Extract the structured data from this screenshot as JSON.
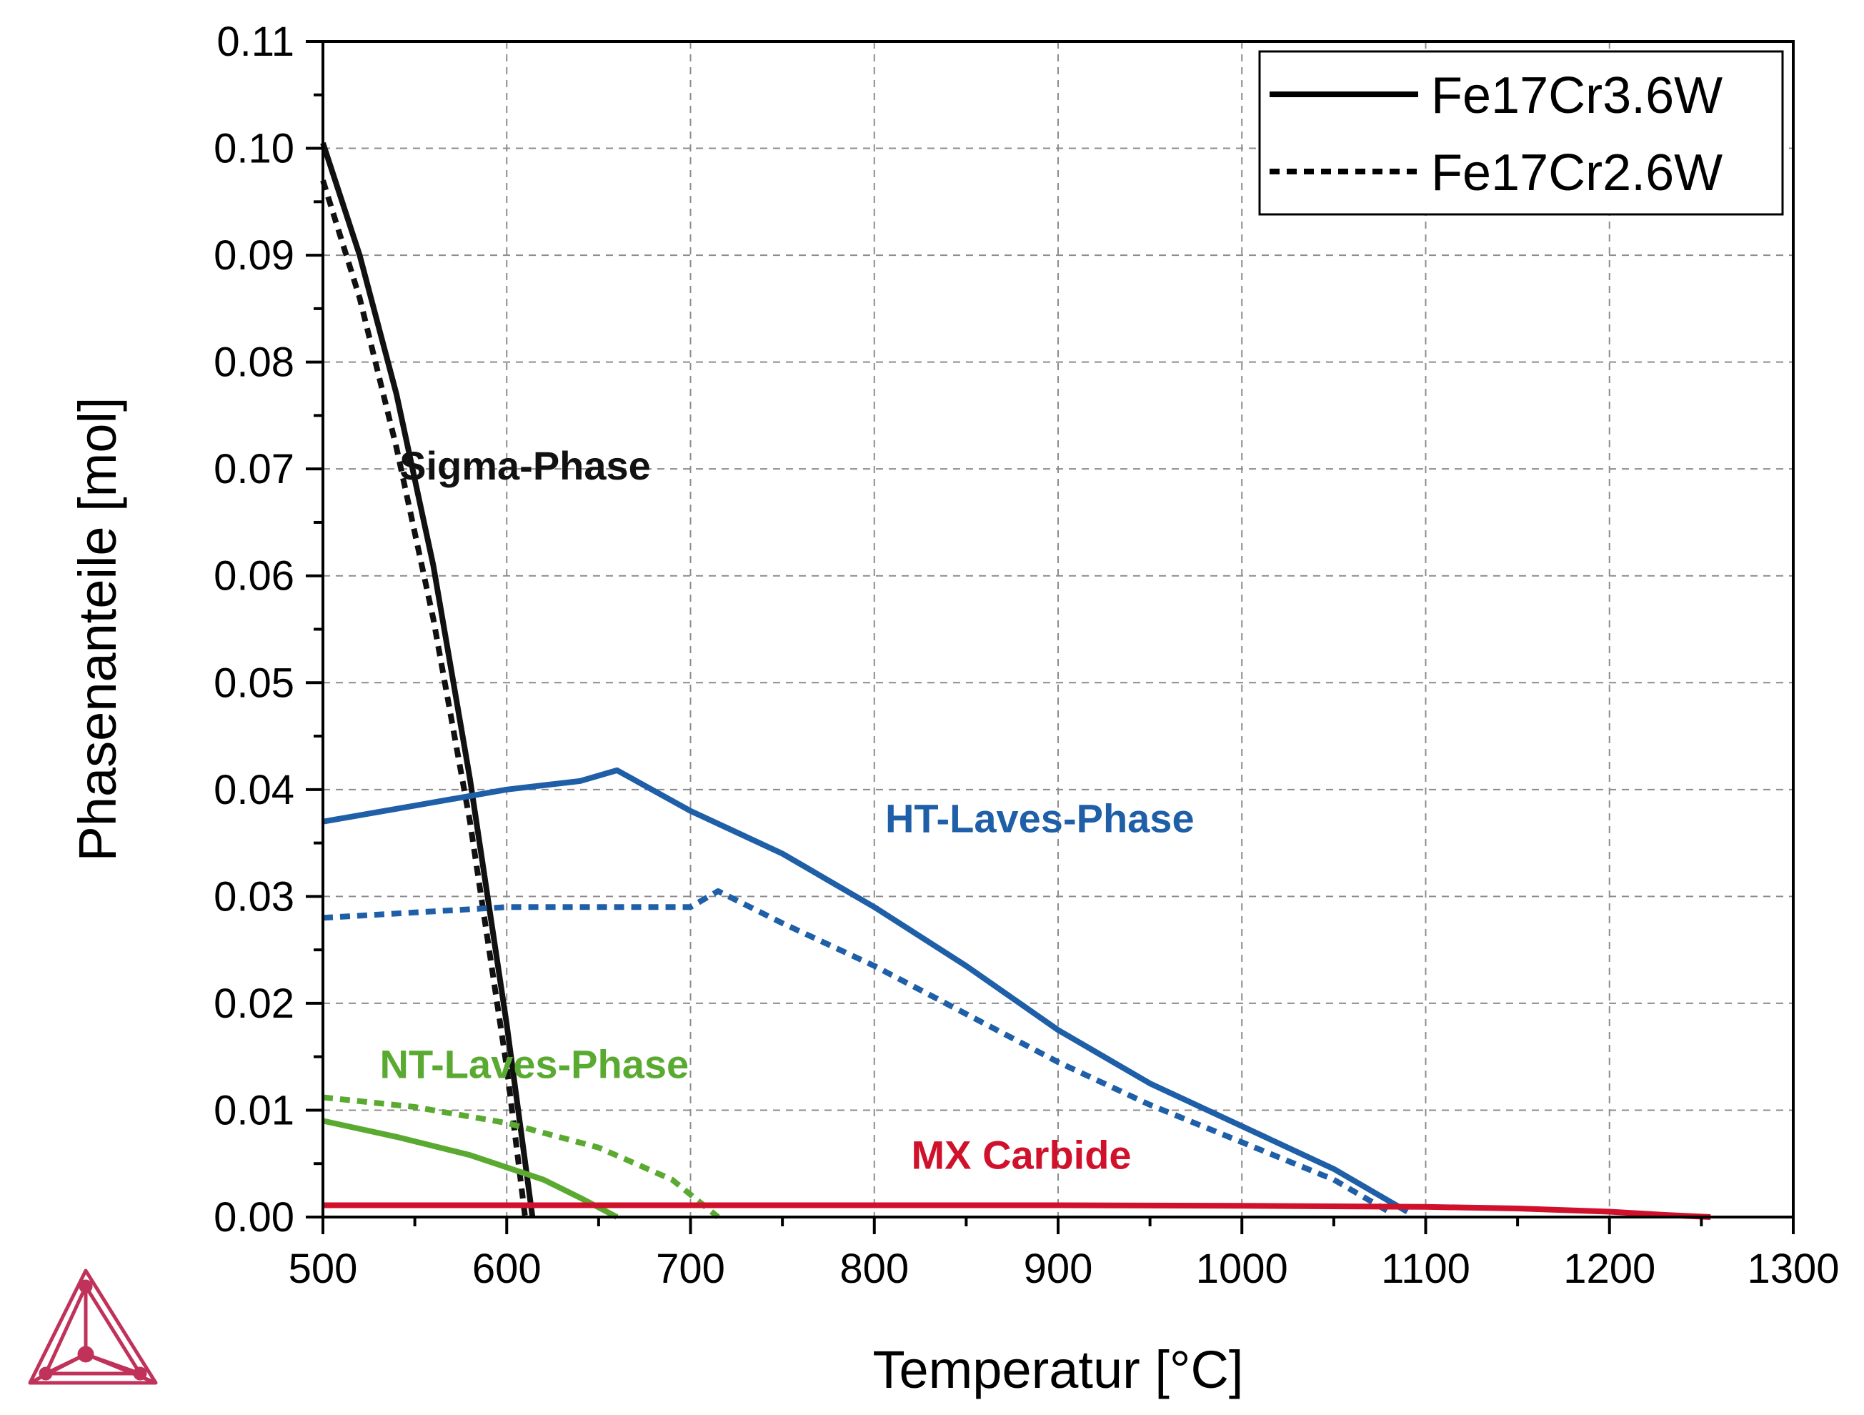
{
  "chart_data": {
    "type": "line",
    "title": "",
    "xlabel": "Temperatur [°C]",
    "ylabel": "Phasenanteile [mol]",
    "xlim": [
      500,
      1300
    ],
    "ylim": [
      0,
      0.11
    ],
    "xticks": [
      "500",
      "600",
      "700",
      "800",
      "900",
      "1000",
      "1100",
      "1200",
      "1300"
    ],
    "yticks": [
      "0.00",
      "0.01",
      "0.02",
      "0.03",
      "0.04",
      "0.05",
      "0.06",
      "0.07",
      "0.08",
      "0.09",
      "0.10",
      "0.11"
    ],
    "grid": true,
    "legend_position": "top-right",
    "legend": [
      {
        "label": "Fe17Cr3.6W",
        "style": "solid"
      },
      {
        "label": "Fe17Cr2.6W",
        "style": "dotted"
      }
    ],
    "annotations": [
      {
        "text": "Sigma-Phase",
        "color": "#111111",
        "x": 610,
        "y": 0.069
      },
      {
        "text": "HT-Laves-Phase",
        "color": "#1f5fa8",
        "x": 890,
        "y": 0.036
      },
      {
        "text": "NT-Laves-Phase",
        "color": "#5aaa32",
        "x": 615,
        "y": 0.013
      },
      {
        "text": "MX Carbide",
        "color": "#d0112b",
        "x": 880,
        "y": 0.0045
      }
    ],
    "series": [
      {
        "phase": "Sigma-Phase",
        "alloy": "Fe17Cr3.6W",
        "style": "solid",
        "color": "#111111",
        "x": [
          500,
          520,
          540,
          560,
          580,
          600,
          614
        ],
        "y": [
          0.1005,
          0.09,
          0.077,
          0.061,
          0.041,
          0.018,
          0.0
        ]
      },
      {
        "phase": "Sigma-Phase",
        "alloy": "Fe17Cr2.6W",
        "style": "dotted",
        "color": "#111111",
        "x": [
          500,
          520,
          540,
          560,
          580,
          600,
          610
        ],
        "y": [
          0.097,
          0.086,
          0.072,
          0.056,
          0.037,
          0.014,
          0.0
        ]
      },
      {
        "phase": "HT-Laves-Phase",
        "alloy": "Fe17Cr3.6W",
        "style": "solid",
        "color": "#1f5fa8",
        "x": [
          500,
          550,
          600,
          640,
          660,
          700,
          750,
          800,
          850,
          900,
          950,
          1000,
          1050,
          1090
        ],
        "y": [
          0.037,
          0.0385,
          0.04,
          0.0408,
          0.0418,
          0.038,
          0.034,
          0.029,
          0.0235,
          0.0175,
          0.0125,
          0.0085,
          0.0045,
          0.0005
        ]
      },
      {
        "phase": "HT-Laves-Phase",
        "alloy": "Fe17Cr2.6W",
        "style": "dotted",
        "color": "#1f5fa8",
        "x": [
          500,
          550,
          600,
          650,
          700,
          715,
          750,
          800,
          850,
          900,
          950,
          1000,
          1050,
          1080
        ],
        "y": [
          0.028,
          0.0285,
          0.029,
          0.029,
          0.029,
          0.0305,
          0.0275,
          0.0235,
          0.019,
          0.0145,
          0.0105,
          0.007,
          0.0035,
          0.0005
        ]
      },
      {
        "phase": "NT-Laves-Phase",
        "alloy": "Fe17Cr3.6W",
        "style": "solid",
        "color": "#5aaa32",
        "x": [
          500,
          540,
          580,
          620,
          640,
          660
        ],
        "y": [
          0.009,
          0.0075,
          0.0058,
          0.0035,
          0.0018,
          0.0
        ]
      },
      {
        "phase": "NT-Laves-Phase",
        "alloy": "Fe17Cr2.6W",
        "style": "dotted",
        "color": "#5aaa32",
        "x": [
          500,
          550,
          600,
          650,
          690,
          715
        ],
        "y": [
          0.0112,
          0.0103,
          0.0088,
          0.0065,
          0.0035,
          0.0
        ]
      },
      {
        "phase": "MX Carbide",
        "alloy": "Fe17Cr3.6W",
        "style": "solid",
        "color": "#d0112b",
        "x": [
          500,
          700,
          900,
          1000,
          1100,
          1150,
          1200,
          1230,
          1255
        ],
        "y": [
          0.0011,
          0.0011,
          0.0011,
          0.00105,
          0.00095,
          0.0008,
          0.0005,
          0.0002,
          0.0
        ]
      }
    ]
  }
}
